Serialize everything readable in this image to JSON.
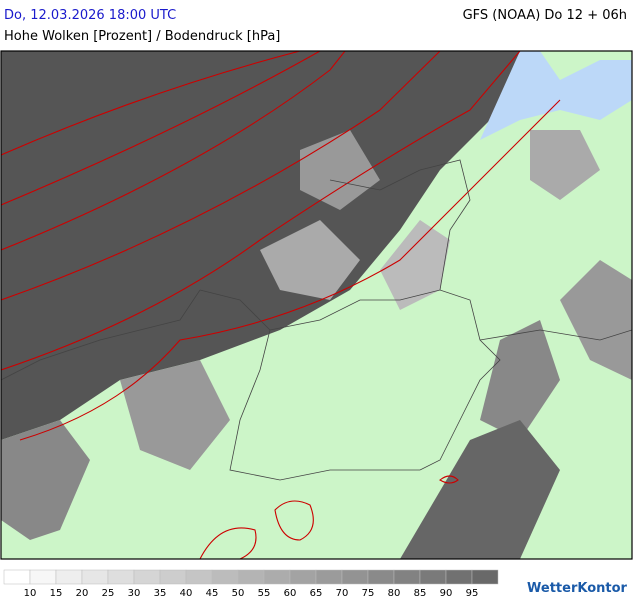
{
  "header": {
    "date": "Do, 12.03.2026 18:00 UTC",
    "model": "GFS (NOAA) Do 12 + 06h",
    "title": "Hohe Wolken [Prozent] / Bodendruck [hPa]"
  },
  "legend": {
    "labels": [
      "10",
      "15",
      "20",
      "25",
      "30",
      "35",
      "40",
      "45",
      "50",
      "55",
      "60",
      "65",
      "70",
      "75",
      "80",
      "85",
      "90",
      "95"
    ]
  },
  "brand": "WetterKontor"
}
